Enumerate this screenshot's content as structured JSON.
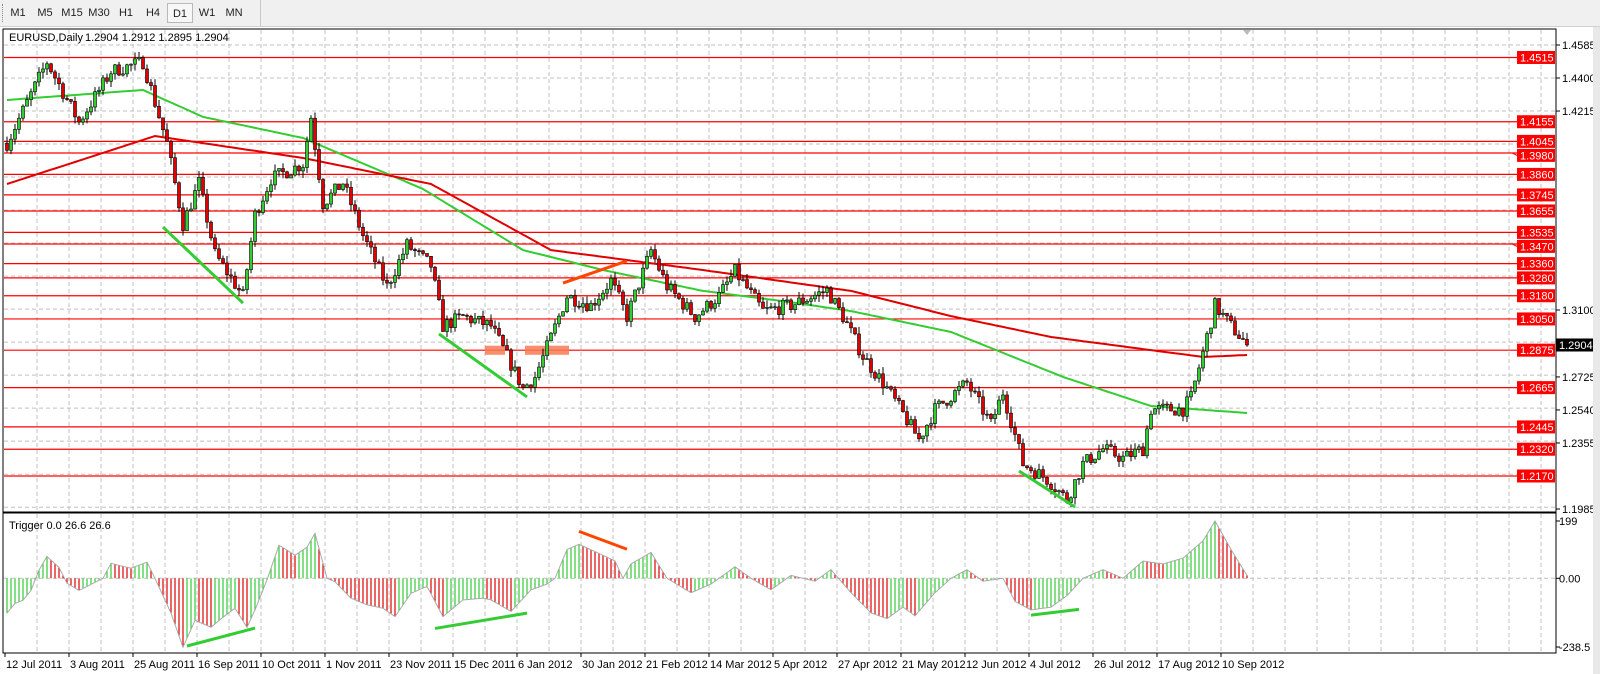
{
  "toolbar": {
    "timeframes": [
      "M1",
      "M5",
      "M15",
      "M30",
      "H1",
      "H4",
      "D1",
      "W1",
      "MN"
    ],
    "active": "D1"
  },
  "chart": {
    "symbol_label": "EURUSD,Daily",
    "ohlc": "1.2904 1.2912 1.2895 1.2904",
    "current_price": "1.2904",
    "price_axis_labels": [
      "1.4585",
      "1.4400",
      "1.4215",
      "1.3100",
      "1.2725",
      "1.2540",
      "1.2355",
      "1.1985"
    ],
    "levels": [
      "1.4515",
      "1.4155",
      "1.4045",
      "1.3980",
      "1.3860",
      "1.3745",
      "1.3655",
      "1.3535",
      "1.3470",
      "1.3360",
      "1.3280",
      "1.3180",
      "1.3050",
      "1.2875",
      "1.2665",
      "1.2445",
      "1.2320",
      "1.2170"
    ],
    "x_axis_labels": [
      "12 Jul 2011",
      "3 Aug 2011",
      "25 Aug 2011",
      "16 Sep 2011",
      "10 Oct 2011",
      "1 Nov 2011",
      "23 Nov 2011",
      "15 Dec 2011",
      "6 Jan 2012",
      "30 Jan 2012",
      "21 Feb 2012",
      "14 Mar 2012",
      "5 Apr 2012",
      "27 Apr 2012",
      "21 May 2012",
      "12 Jun 2012",
      "4 Jul 2012",
      "26 Jul 2012",
      "17 Aug 2012",
      "10 Sep 2012"
    ]
  },
  "indicator": {
    "label": "Trigger 0.0 26.6 26.6",
    "axis_labels": [
      "199",
      "0.00",
      "-238.5"
    ]
  },
  "colors": {
    "bull": "#33cc33",
    "bear": "#e00000",
    "level": "#ff0000",
    "ma_fast": "#33cc33",
    "ma_slow": "#e00000",
    "trend_green": "#33cc33",
    "trend_red": "#ff4500",
    "zone": "#f77a55",
    "grid": "#c0c0c0"
  },
  "chart_data": {
    "type": "candlestick",
    "price_range": [
      1.1985,
      1.4585
    ],
    "bars": 311,
    "close_keypoints": [
      [
        0,
        1.4035
      ],
      [
        10,
        1.449
      ],
      [
        18,
        1.4152
      ],
      [
        26,
        1.4437
      ],
      [
        34,
        1.449
      ],
      [
        40,
        1.4035
      ],
      [
        44,
        1.3581
      ],
      [
        48,
        1.3813
      ],
      [
        52,
        1.3412
      ],
      [
        59,
        1.3179
      ],
      [
        62,
        1.3634
      ],
      [
        66,
        1.3835
      ],
      [
        74,
        1.3919
      ],
      [
        76,
        1.4183
      ],
      [
        79,
        1.3697
      ],
      [
        84,
        1.3813
      ],
      [
        89,
        1.3517
      ],
      [
        95,
        1.3232
      ],
      [
        100,
        1.3464
      ],
      [
        106,
        1.3348
      ],
      [
        109,
        1.301
      ],
      [
        114,
        1.3063
      ],
      [
        121,
        1.301
      ],
      [
        125,
        1.2841
      ],
      [
        129,
        1.2661
      ],
      [
        132,
        1.2724
      ],
      [
        136,
        1.2946
      ],
      [
        140,
        1.3179
      ],
      [
        146,
        1.3126
      ],
      [
        151,
        1.3264
      ],
      [
        155,
        1.3063
      ],
      [
        161,
        1.3433
      ],
      [
        165,
        1.3232
      ],
      [
        172,
        1.3063
      ],
      [
        178,
        1.3179
      ],
      [
        182,
        1.3316
      ],
      [
        189,
        1.3094
      ],
      [
        196,
        1.3126
      ],
      [
        205,
        1.3211
      ],
      [
        209,
        1.3063
      ],
      [
        214,
        1.2841
      ],
      [
        220,
        1.2661
      ],
      [
        228,
        1.2375
      ],
      [
        232,
        1.2544
      ],
      [
        240,
        1.2692
      ],
      [
        246,
        1.246
      ],
      [
        249,
        1.264
      ],
      [
        254,
        1.2238
      ],
      [
        260,
        1.2153
      ],
      [
        265,
        1.2037
      ],
      [
        269,
        1.2238
      ],
      [
        274,
        1.2322
      ],
      [
        279,
        1.227
      ],
      [
        284,
        1.2322
      ],
      [
        286,
        1.2544
      ],
      [
        294,
        1.2544
      ],
      [
        296,
        1.2608
      ],
      [
        299,
        1.2862
      ],
      [
        302,
        1.3126
      ],
      [
        306,
        1.301
      ],
      [
        310,
        1.2904
      ]
    ],
    "ma_slow": [
      [
        0,
        1.3806
      ],
      [
        37,
        1.4075
      ],
      [
        74,
        1.3952
      ],
      [
        106,
        1.3806
      ],
      [
        136,
        1.3436
      ],
      [
        174,
        1.3324
      ],
      [
        211,
        1.3207
      ],
      [
        236,
        1.3066
      ],
      [
        261,
        1.2949
      ],
      [
        299,
        1.2837
      ],
      [
        310,
        1.2848
      ]
    ],
    "ma_fast": [
      [
        0,
        1.4277
      ],
      [
        34,
        1.4333
      ],
      [
        49,
        1.4182
      ],
      [
        74,
        1.4064
      ],
      [
        104,
        1.3778
      ],
      [
        129,
        1.3436
      ],
      [
        149,
        1.3324
      ],
      [
        174,
        1.3207
      ],
      [
        194,
        1.315
      ],
      [
        211,
        1.3094
      ],
      [
        236,
        1.2977
      ],
      [
        264,
        1.2725
      ],
      [
        286,
        1.2562
      ],
      [
        310,
        1.2523
      ]
    ],
    "trendlines": [
      {
        "color": "green",
        "from": [
          39,
          1.3565
        ],
        "to": [
          59,
          1.3139
        ]
      },
      {
        "color": "green",
        "from": [
          108,
          1.2966
        ],
        "to": [
          130,
          1.2613
        ]
      },
      {
        "color": "green",
        "from": [
          253,
          1.2198
        ],
        "to": [
          267,
          1.1996
        ]
      },
      {
        "color": "red",
        "from": [
          139,
          1.3251
        ],
        "to": [
          155,
          1.3375
        ]
      }
    ],
    "zones": [
      [
        120,
        125,
        1.2849,
        1.29
      ],
      [
        130,
        135,
        1.2849,
        1.29
      ],
      [
        136,
        141,
        1.2849,
        1.29
      ]
    ],
    "indicator_range": [
      -238.5,
      199
    ],
    "indicator_keypoints": [
      [
        0,
        -121
      ],
      [
        2,
        -87
      ],
      [
        4,
        -76
      ],
      [
        6,
        -42
      ],
      [
        8,
        28
      ],
      [
        10,
        76
      ],
      [
        13,
        38
      ],
      [
        15,
        -17
      ],
      [
        18,
        -42
      ],
      [
        20,
        -28
      ],
      [
        24,
        0
      ],
      [
        26,
        52
      ],
      [
        31,
        35
      ],
      [
        35,
        56
      ],
      [
        37,
        0
      ],
      [
        41,
        -121
      ],
      [
        44,
        -239
      ],
      [
        47,
        -146
      ],
      [
        51,
        -170
      ],
      [
        54,
        -135
      ],
      [
        57,
        -104
      ],
      [
        60,
        -170
      ],
      [
        62,
        -110
      ],
      [
        65,
        -5
      ],
      [
        68,
        115
      ],
      [
        72,
        80
      ],
      [
        75,
        108
      ],
      [
        77,
        156
      ],
      [
        80,
        0
      ],
      [
        82,
        -12
      ],
      [
        86,
        -69
      ],
      [
        90,
        -92
      ],
      [
        94,
        -104
      ],
      [
        97,
        -133
      ],
      [
        101,
        -52
      ],
      [
        105,
        -28
      ],
      [
        109,
        -133
      ],
      [
        114,
        -75
      ],
      [
        119,
        -69
      ],
      [
        121,
        -75
      ],
      [
        126,
        -115
      ],
      [
        131,
        -40
      ],
      [
        135,
        -20
      ],
      [
        137,
        0
      ],
      [
        140,
        100
      ],
      [
        143,
        118
      ],
      [
        149,
        80
      ],
      [
        152,
        60
      ],
      [
        154,
        0
      ],
      [
        156,
        50
      ],
      [
        161,
        90
      ],
      [
        165,
        0
      ],
      [
        171,
        -50
      ],
      [
        176,
        -20
      ],
      [
        182,
        40
      ],
      [
        186,
        0
      ],
      [
        191,
        -40
      ],
      [
        196,
        10
      ],
      [
        202,
        -10
      ],
      [
        206,
        30
      ],
      [
        211,
        -50
      ],
      [
        216,
        -120
      ],
      [
        220,
        -140
      ],
      [
        224,
        -100
      ],
      [
        227,
        -130
      ],
      [
        232,
        -50
      ],
      [
        236,
        0
      ],
      [
        240,
        30
      ],
      [
        244,
        -10
      ],
      [
        249,
        0
      ],
      [
        252,
        -80
      ],
      [
        256,
        -110
      ],
      [
        261,
        -100
      ],
      [
        265,
        -60
      ],
      [
        269,
        0
      ],
      [
        274,
        30
      ],
      [
        279,
        0
      ],
      [
        284,
        60
      ],
      [
        289,
        50
      ],
      [
        294,
        70
      ],
      [
        299,
        130
      ],
      [
        302,
        199
      ],
      [
        306,
        100
      ],
      [
        310,
        10
      ]
    ],
    "indicator_trendlines": [
      {
        "color": "green",
        "from": [
          45,
          -235
        ],
        "to": [
          62,
          -173
        ]
      },
      {
        "color": "green",
        "from": [
          107,
          -174
        ],
        "to": [
          130,
          -121
        ]
      },
      {
        "color": "green",
        "from": [
          256,
          -128
        ],
        "to": [
          268,
          -108
        ]
      },
      {
        "color": "red",
        "from": [
          143,
          163
        ],
        "to": [
          155,
          101
        ]
      }
    ]
  }
}
